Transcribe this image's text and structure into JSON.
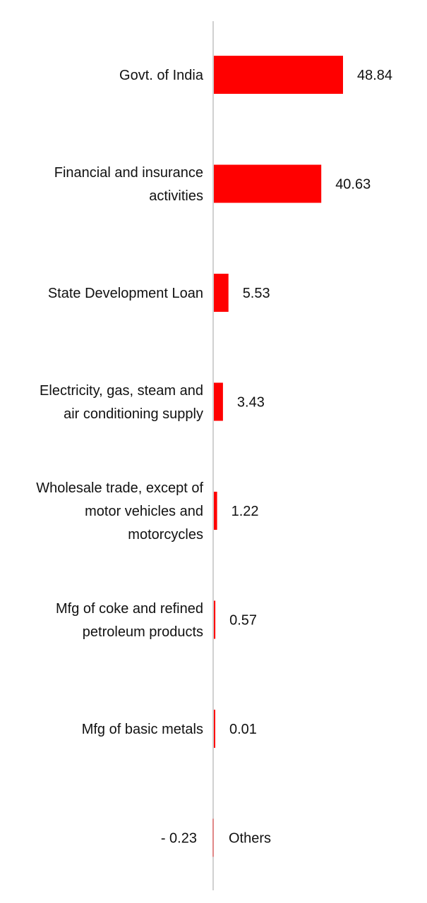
{
  "chart_data": {
    "type": "bar",
    "orientation": "horizontal",
    "title": "",
    "xlabel": "",
    "ylabel": "",
    "categories": [
      "Govt. of India",
      "Financial and insurance activities",
      "State Development Loan",
      "Electricity, gas, steam and air conditioning supply",
      "Wholesale trade, except of motor vehicles and motorcycles",
      "Mfg of coke and refined petroleum products",
      "Mfg of basic metals",
      "Others"
    ],
    "category_lines": [
      [
        "Govt. of India"
      ],
      [
        "Financial and insurance",
        "activities"
      ],
      [
        "State Development Loan"
      ],
      [
        "Electricity, gas, steam and",
        "air conditioning supply"
      ],
      [
        "Wholesale trade, except of",
        "motor vehicles and",
        "motorcycles"
      ],
      [
        "Mfg of coke and refined",
        "petroleum products"
      ],
      [
        "Mfg of basic metals"
      ],
      [
        "Others"
      ]
    ],
    "values": [
      48.84,
      40.63,
      5.53,
      3.43,
      1.22,
      0.57,
      0.01,
      -0.23
    ],
    "value_labels": [
      "48.84",
      "40.63",
      "5.53",
      "3.43",
      "1.22",
      "0.57",
      "0.01",
      "-  0.23"
    ],
    "xlim": [
      0,
      48.84
    ],
    "grid": false,
    "legend": "none",
    "colors": {
      "bar": "#ff0000",
      "axis": "#d0d0d0",
      "text": "#111111"
    }
  }
}
